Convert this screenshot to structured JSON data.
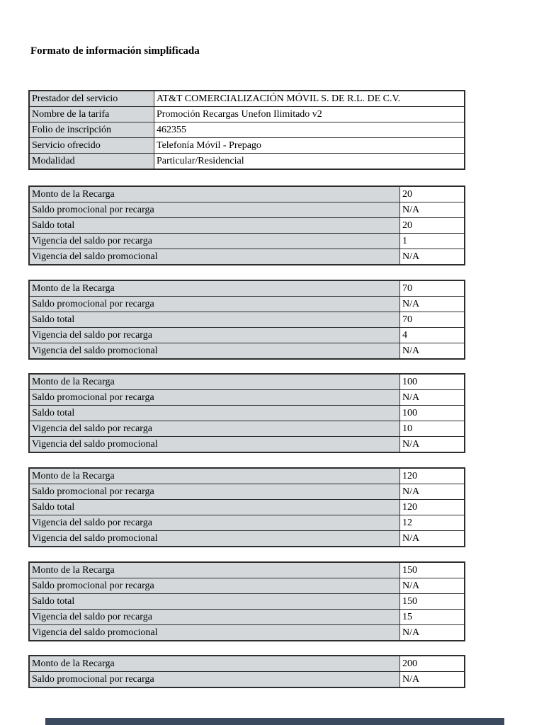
{
  "page": {
    "title": "Formato de información simplificada"
  },
  "info_table": {
    "rows": [
      {
        "label": "Prestador del servicio",
        "value": "AT&T COMERCIALIZACIÓN MÓVIL S. DE R.L. DE C.V."
      },
      {
        "label": "Nombre de la tarifa",
        "value": "Promoción Recargas Unefon Ilimitado v2"
      },
      {
        "label": "Folio de inscripción",
        "value": "462355"
      },
      {
        "label": "Servicio ofrecido",
        "value": "Telefonía Móvil - Prepago"
      },
      {
        "label": "Modalidad",
        "value": "Particular/Residencial"
      }
    ]
  },
  "recharge_row_labels": [
    "Monto de la Recarga",
    "Saldo promocional por recarga",
    "Saldo total",
    "Vigencia del saldo por recarga",
    "Vigencia del saldo promocional"
  ],
  "recharge_tables": [
    {
      "values": [
        "20",
        "N/A",
        "20",
        "1",
        "N/A"
      ]
    },
    {
      "values": [
        "70",
        "N/A",
        "70",
        "4",
        "N/A"
      ]
    },
    {
      "values": [
        "100",
        "N/A",
        "100",
        "10",
        "N/A"
      ]
    },
    {
      "values": [
        "120",
        "N/A",
        "120",
        "12",
        "N/A"
      ]
    },
    {
      "values": [
        "150",
        "N/A",
        "150",
        "15",
        "N/A"
      ]
    },
    {
      "values": [
        "200",
        "N/A"
      ]
    }
  ],
  "colors": {
    "page_bg": "#ffffff",
    "text": "#000000",
    "label_cell_bg": "#d4d8da",
    "table_border": "#2d2d2d",
    "bottom_bar": "#3b4a5f"
  }
}
